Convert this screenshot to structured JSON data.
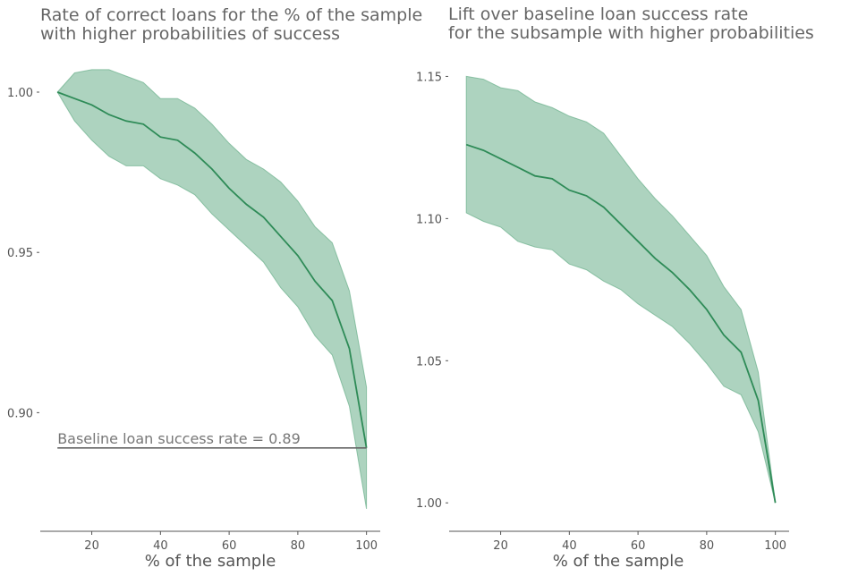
{
  "colors": {
    "line": "#2e8b57",
    "band": "#6aaf8a",
    "text": "#666666",
    "axis": "#555555",
    "baseline": "#666666"
  },
  "chart_data": [
    {
      "type": "line",
      "title_lines": [
        "Rate of correct loans for the % of the sample",
        "with higher probabilities of success"
      ],
      "xlabel": "% of the sample",
      "ylabel": "",
      "xlim": [
        5,
        104
      ],
      "ylim": [
        0.863,
        1.012
      ],
      "xticks": [
        20,
        40,
        60,
        80,
        100
      ],
      "xtick_labels": [
        "20",
        "40",
        "60",
        "80",
        "100"
      ],
      "yticks": [
        0.9,
        0.95,
        1.0
      ],
      "ytick_labels": [
        "0.90",
        "0.95",
        "1.00"
      ],
      "grid": false,
      "x": [
        10,
        15,
        20,
        25,
        30,
        35,
        40,
        45,
        50,
        55,
        60,
        65,
        70,
        75,
        80,
        85,
        90,
        95,
        100
      ],
      "y": [
        1.0,
        0.998,
        0.996,
        0.993,
        0.991,
        0.99,
        0.986,
        0.985,
        0.981,
        0.976,
        0.97,
        0.965,
        0.961,
        0.955,
        0.949,
        0.941,
        0.935,
        0.92,
        0.889
      ],
      "lower": [
        1.0,
        0.991,
        0.985,
        0.98,
        0.977,
        0.977,
        0.973,
        0.971,
        0.968,
        0.962,
        0.957,
        0.952,
        0.947,
        0.939,
        0.933,
        0.924,
        0.918,
        0.902,
        0.87
      ],
      "upper": [
        1.0,
        1.006,
        1.007,
        1.007,
        1.005,
        1.003,
        0.998,
        0.998,
        0.995,
        0.99,
        0.984,
        0.979,
        0.976,
        0.972,
        0.966,
        0.958,
        0.953,
        0.938,
        0.908
      ],
      "baseline": {
        "value": 0.889,
        "x_start": 10,
        "x_end": 100,
        "label": "Baseline loan success rate = 0.89"
      }
    },
    {
      "type": "line",
      "title_lines": [
        "Lift over baseline loan success rate",
        "for the subsample with higher probabilities"
      ],
      "xlabel": "% of the sample",
      "ylabel": "",
      "xlim": [
        5,
        104
      ],
      "ylim": [
        0.99,
        1.158
      ],
      "xticks": [
        20,
        40,
        60,
        80,
        100
      ],
      "xtick_labels": [
        "20",
        "40",
        "60",
        "80",
        "100"
      ],
      "yticks": [
        1.0,
        1.05,
        1.1,
        1.15
      ],
      "ytick_labels": [
        "1.00",
        "1.05",
        "1.10",
        "1.15"
      ],
      "grid": false,
      "x": [
        10,
        15,
        20,
        25,
        30,
        35,
        40,
        45,
        50,
        55,
        60,
        65,
        70,
        75,
        80,
        85,
        90,
        95,
        100
      ],
      "y": [
        1.126,
        1.124,
        1.121,
        1.118,
        1.115,
        1.114,
        1.11,
        1.108,
        1.104,
        1.098,
        1.092,
        1.086,
        1.081,
        1.075,
        1.068,
        1.059,
        1.053,
        1.036,
        1.0
      ],
      "lower": [
        1.102,
        1.099,
        1.097,
        1.092,
        1.09,
        1.089,
        1.084,
        1.082,
        1.078,
        1.075,
        1.07,
        1.066,
        1.062,
        1.056,
        1.049,
        1.041,
        1.038,
        1.025,
        1.0
      ],
      "upper": [
        1.15,
        1.149,
        1.146,
        1.145,
        1.141,
        1.139,
        1.136,
        1.134,
        1.13,
        1.122,
        1.114,
        1.107,
        1.101,
        1.094,
        1.087,
        1.076,
        1.068,
        1.046,
        1.0
      ]
    }
  ]
}
